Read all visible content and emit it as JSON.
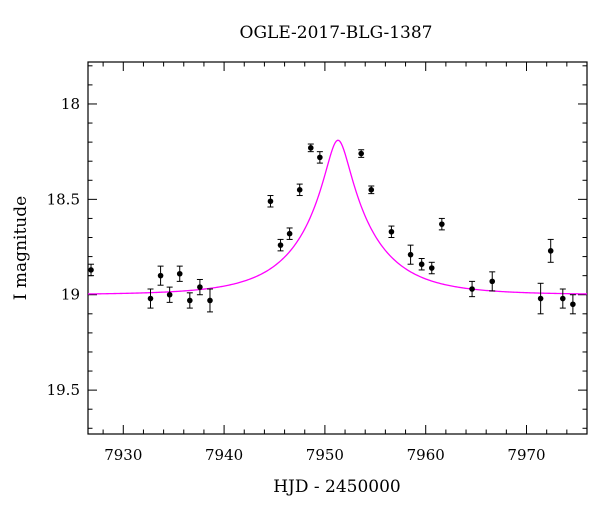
{
  "chart_data": {
    "type": "scatter",
    "title": "OGLE-2017-BLG-1387",
    "xlabel": "HJD - 2450000",
    "ylabel": "I magnitude",
    "xlim": [
      7926.5,
      7976
    ],
    "ylim": [
      19.73,
      17.78
    ],
    "y_inverted": true,
    "grid": false,
    "x_ticks": [
      7930,
      7940,
      7950,
      7960,
      7970
    ],
    "y_ticks": [
      18,
      18.5,
      19,
      19.5
    ],
    "x_tick_labels": [
      "7930",
      "7940",
      "7950",
      "7960",
      "7970"
    ],
    "y_tick_labels": [
      "18",
      "18.5",
      "19",
      "19.5"
    ],
    "colors": {
      "model": "#ff00ff",
      "points": "#000000"
    },
    "model": {
      "baseline": 19.0,
      "peak": 18.19,
      "t0": 7951.3,
      "u0": 0.16,
      "tE": 7.0
    },
    "series": [
      {
        "type": "errorbar-points",
        "points": [
          {
            "x": 7926.8,
            "y": 18.87,
            "err": 0.03
          },
          {
            "x": 7932.7,
            "y": 19.02,
            "err": 0.05
          },
          {
            "x": 7933.7,
            "y": 18.9,
            "err": 0.05
          },
          {
            "x": 7934.6,
            "y": 19.0,
            "err": 0.04
          },
          {
            "x": 7935.6,
            "y": 18.89,
            "err": 0.04
          },
          {
            "x": 7936.6,
            "y": 19.03,
            "err": 0.04
          },
          {
            "x": 7937.6,
            "y": 18.96,
            "err": 0.04
          },
          {
            "x": 7938.6,
            "y": 19.03,
            "err": 0.06
          },
          {
            "x": 7944.6,
            "y": 18.51,
            "err": 0.03
          },
          {
            "x": 7945.6,
            "y": 18.74,
            "err": 0.03
          },
          {
            "x": 7946.5,
            "y": 18.68,
            "err": 0.03
          },
          {
            "x": 7947.5,
            "y": 18.45,
            "err": 0.03
          },
          {
            "x": 7948.6,
            "y": 18.23,
            "err": 0.02
          },
          {
            "x": 7949.5,
            "y": 18.28,
            "err": 0.03
          },
          {
            "x": 7953.6,
            "y": 18.26,
            "err": 0.02
          },
          {
            "x": 7954.6,
            "y": 18.45,
            "err": 0.02
          },
          {
            "x": 7956.6,
            "y": 18.67,
            "err": 0.03
          },
          {
            "x": 7958.5,
            "y": 18.79,
            "err": 0.05
          },
          {
            "x": 7959.6,
            "y": 18.84,
            "err": 0.03
          },
          {
            "x": 7960.6,
            "y": 18.86,
            "err": 0.03
          },
          {
            "x": 7961.6,
            "y": 18.63,
            "err": 0.03
          },
          {
            "x": 7964.6,
            "y": 18.97,
            "err": 0.04
          },
          {
            "x": 7966.6,
            "y": 18.93,
            "err": 0.05
          },
          {
            "x": 7971.4,
            "y": 19.02,
            "err": 0.08
          },
          {
            "x": 7972.4,
            "y": 18.77,
            "err": 0.06
          },
          {
            "x": 7973.6,
            "y": 19.02,
            "err": 0.05
          },
          {
            "x": 7974.6,
            "y": 19.05,
            "err": 0.05
          }
        ]
      }
    ]
  }
}
